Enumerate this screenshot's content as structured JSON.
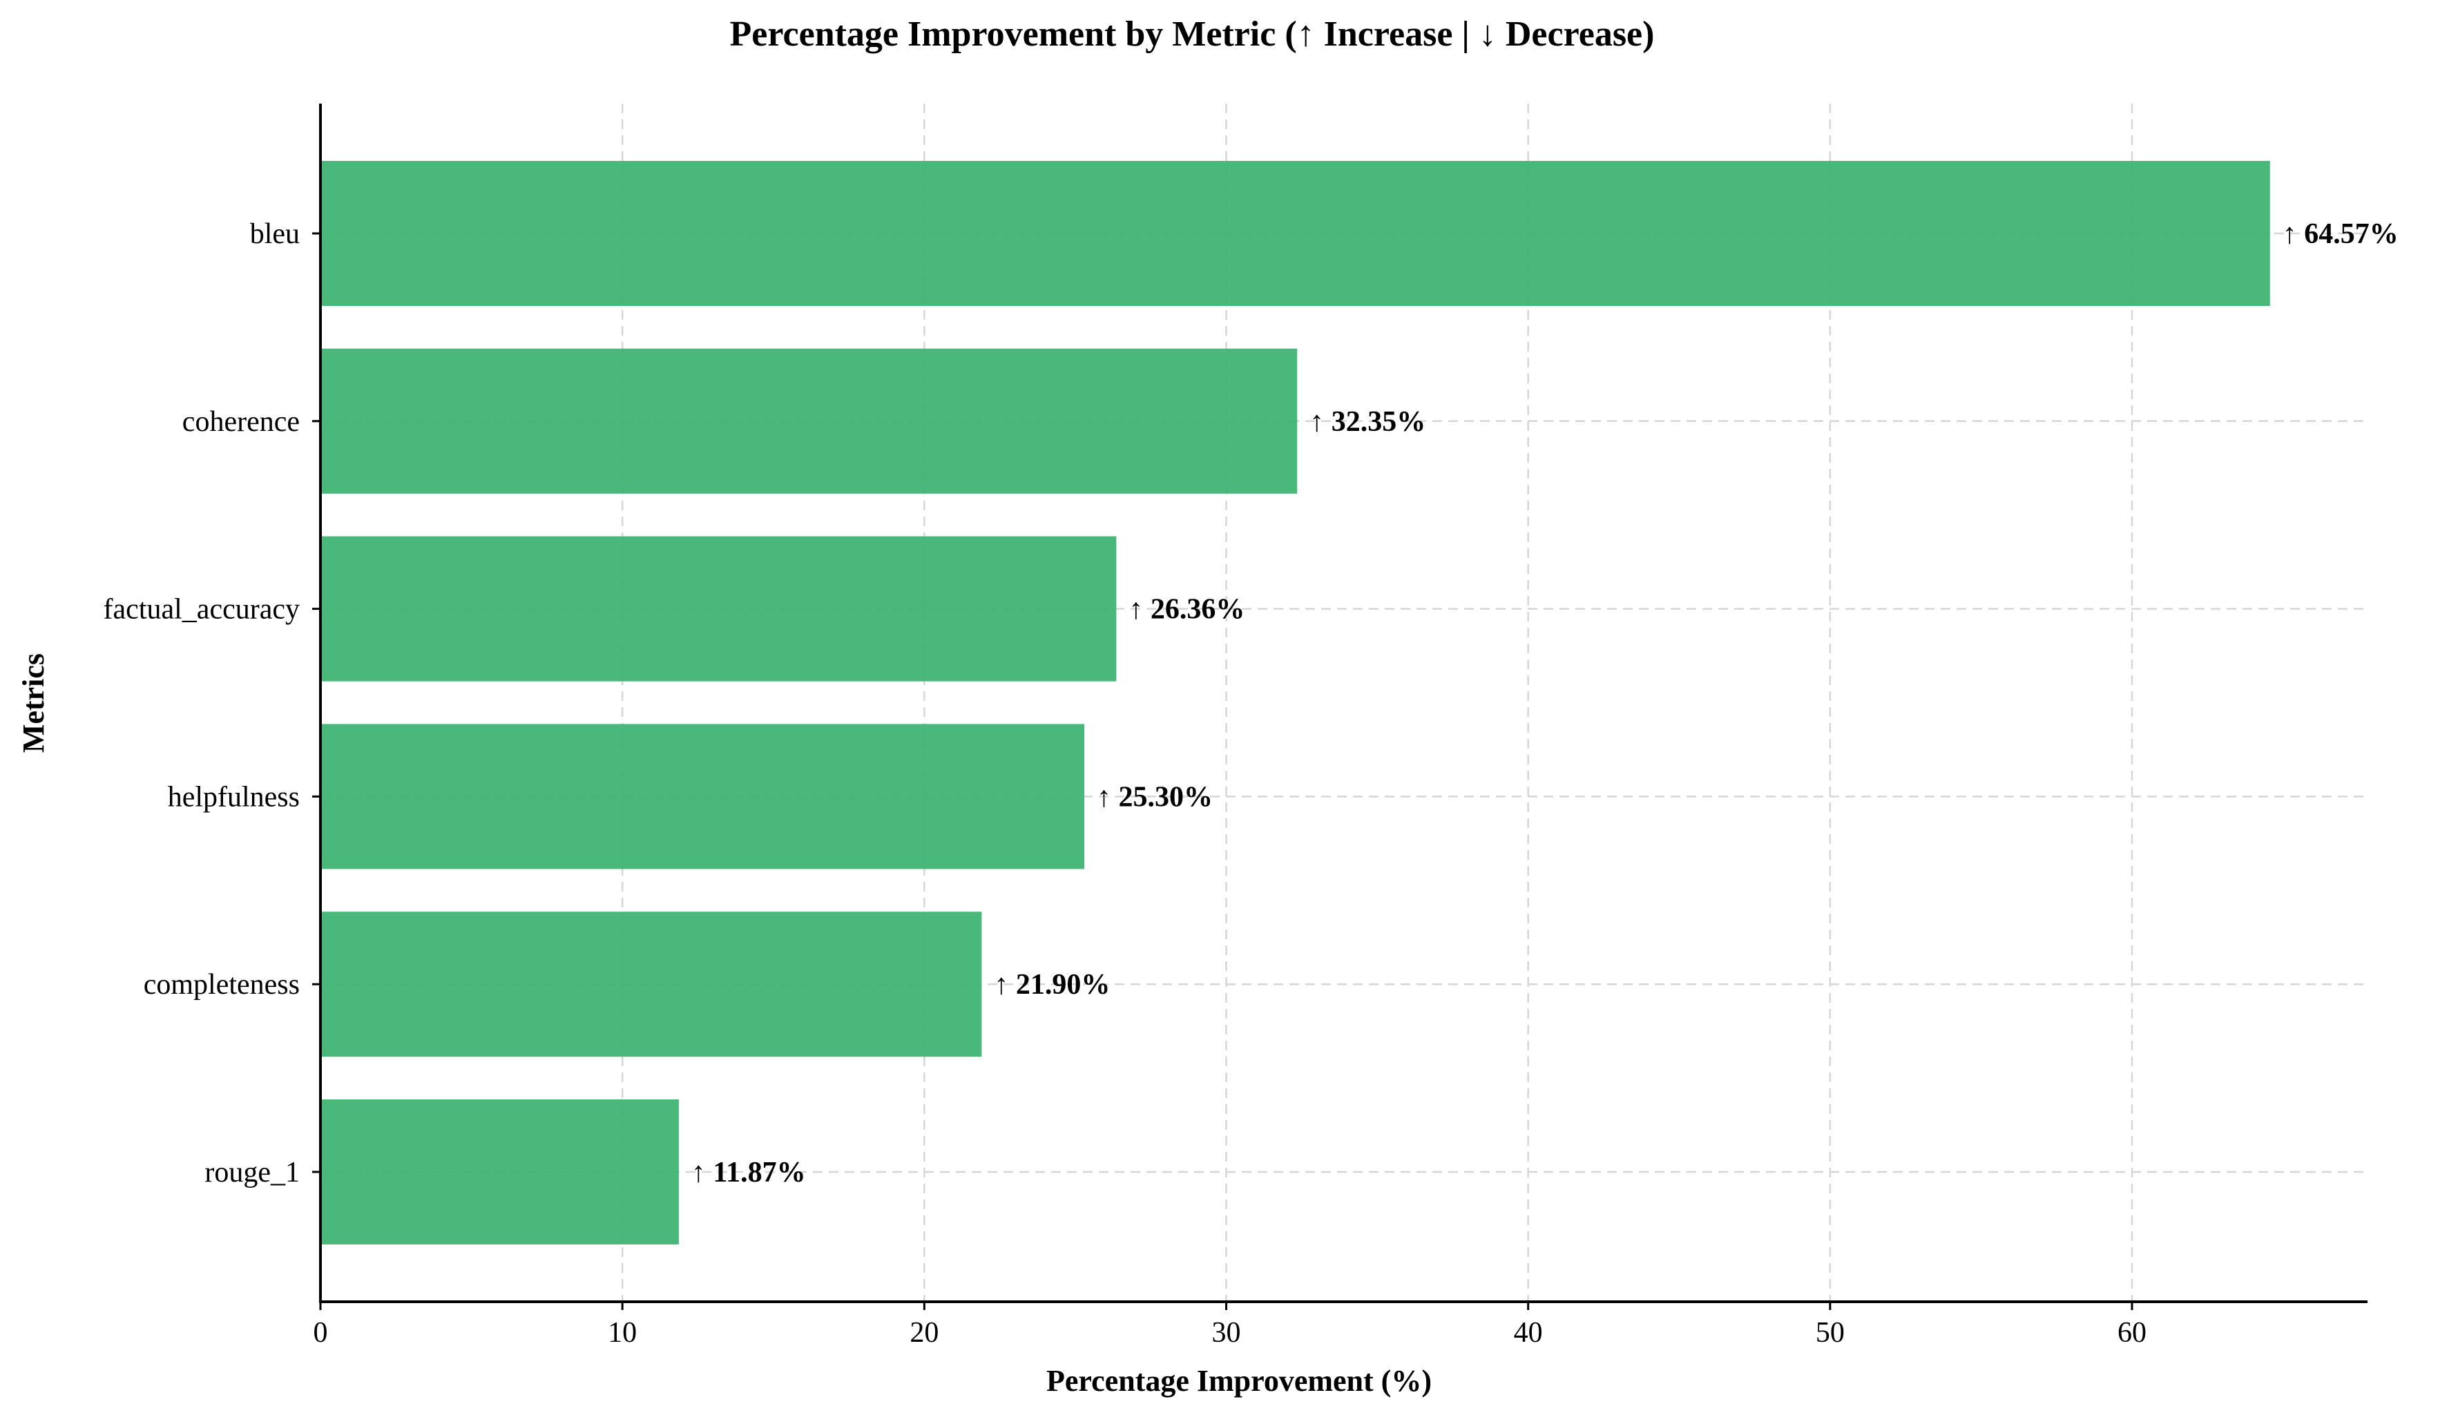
{
  "chart_data": {
    "type": "bar",
    "orientation": "horizontal",
    "title": "Percentage Improvement by Metric (↑ Increase | ↓ Decrease)",
    "xlabel": "Percentage Improvement (%)",
    "ylabel": "Metrics",
    "categories": [
      "bleu",
      "coherence",
      "factual_accuracy",
      "helpfulness",
      "completeness",
      "rouge_1"
    ],
    "values": [
      64.57,
      32.35,
      26.36,
      25.3,
      21.9,
      11.87
    ],
    "data_labels": [
      "↑ 64.57%",
      "↑ 32.35%",
      "↑ 26.36%",
      "↑ 25.30%",
      "↑ 21.90%",
      "↑ 11.87%"
    ],
    "xlim": [
      0,
      67.8
    ],
    "xticks": [
      0,
      10,
      20,
      30,
      40,
      50,
      60
    ],
    "xtick_labels": [
      "0",
      "10",
      "20",
      "30",
      "40",
      "50",
      "60"
    ],
    "grid": true,
    "bar_color": "#3cb371"
  }
}
